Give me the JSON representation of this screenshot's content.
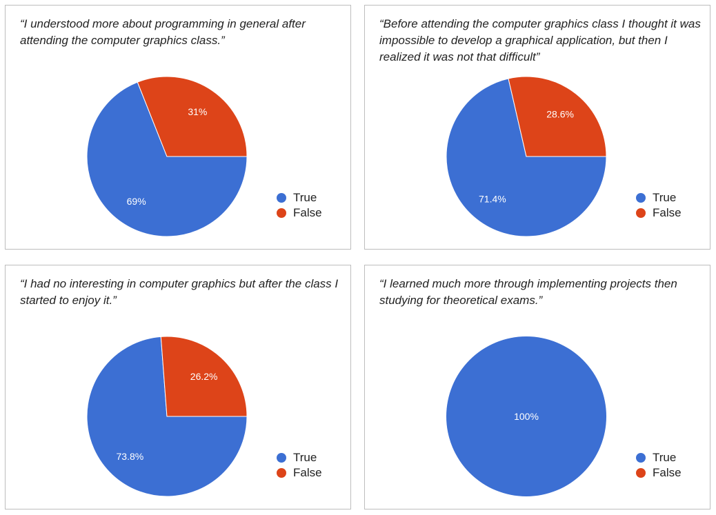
{
  "colors": {
    "true": "#3c6fd3",
    "false": "#dd4419"
  },
  "chart_data": [
    {
      "type": "pie",
      "title": "“I understood more about programming in general after attending the computer graphics class.”",
      "categories": [
        "True",
        "False"
      ],
      "values": [
        69,
        31
      ],
      "labels": [
        "69%",
        "31%"
      ],
      "legend": "right"
    },
    {
      "type": "pie",
      "title": "“Before attending the computer graphics class I thought it was impossible to develop a graphical application, but then I realized it was not that difficult”",
      "categories": [
        "True",
        "False"
      ],
      "values": [
        71.4,
        28.6
      ],
      "labels": [
        "71.4%",
        "28.6%"
      ],
      "legend": "right"
    },
    {
      "type": "pie",
      "title": "“I had no interesting in  computer graphics but after the class I started to enjoy it.”",
      "categories": [
        "True",
        "False"
      ],
      "values": [
        73.8,
        26.2
      ],
      "labels": [
        "73.8%",
        "26.2%"
      ],
      "legend": "right"
    },
    {
      "type": "pie",
      "title": "“I learned much more through implementing projects then studying for theoretical exams.”",
      "categories": [
        "True",
        "False"
      ],
      "values": [
        100,
        0
      ],
      "labels": [
        "100%",
        ""
      ],
      "legend": "right"
    }
  ]
}
